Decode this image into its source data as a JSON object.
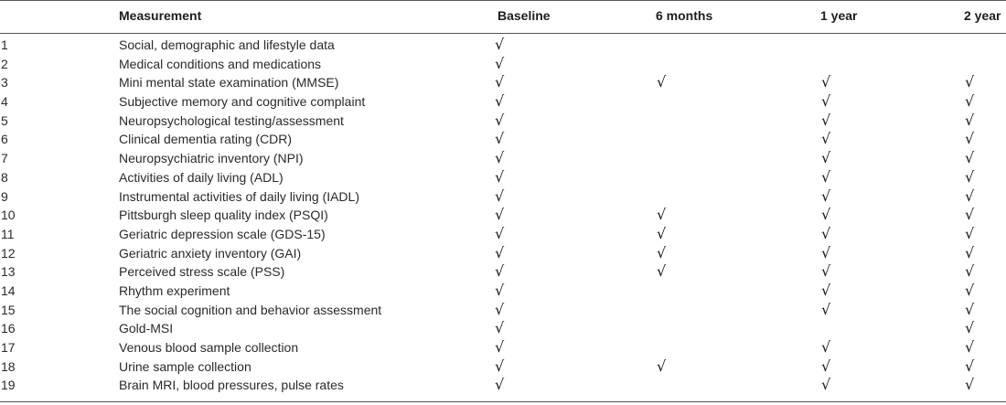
{
  "header": {
    "measurement": "Measurement",
    "baseline": "Baseline",
    "six_months": "6 months",
    "one_year": "1 year",
    "two_year": "2 year"
  },
  "check_symbol": "√",
  "rows": [
    {
      "num": "1",
      "measurement": "Social, demographic and lifestyle data",
      "baseline": true,
      "six_months": false,
      "one_year": false,
      "two_year": false
    },
    {
      "num": "2",
      "measurement": "Medical conditions and medications",
      "baseline": true,
      "six_months": false,
      "one_year": false,
      "two_year": false
    },
    {
      "num": "3",
      "measurement": "Mini mental state examination (MMSE)",
      "baseline": true,
      "six_months": true,
      "one_year": true,
      "two_year": true
    },
    {
      "num": "4",
      "measurement": "Subjective memory and cognitive complaint",
      "baseline": true,
      "six_months": false,
      "one_year": true,
      "two_year": true
    },
    {
      "num": "5",
      "measurement": "Neuropsychological testing/assessment",
      "baseline": true,
      "six_months": false,
      "one_year": true,
      "two_year": true
    },
    {
      "num": "6",
      "measurement": "Clinical dementia rating (CDR)",
      "baseline": true,
      "six_months": false,
      "one_year": true,
      "two_year": true
    },
    {
      "num": "7",
      "measurement": "Neuropsychiatric inventory (NPI)",
      "baseline": true,
      "six_months": false,
      "one_year": true,
      "two_year": true
    },
    {
      "num": "8",
      "measurement": "Activities of daily living (ADL)",
      "baseline": true,
      "six_months": false,
      "one_year": true,
      "two_year": true
    },
    {
      "num": "9",
      "measurement": "Instrumental activities of daily living (IADL)",
      "baseline": true,
      "six_months": false,
      "one_year": true,
      "two_year": true
    },
    {
      "num": "10",
      "measurement": "Pittsburgh sleep quality index (PSQI)",
      "baseline": true,
      "six_months": true,
      "one_year": true,
      "two_year": true
    },
    {
      "num": "11",
      "measurement": "Geriatric depression scale (GDS-15)",
      "baseline": true,
      "six_months": true,
      "one_year": true,
      "two_year": true
    },
    {
      "num": "12",
      "measurement": "Geriatric anxiety inventory (GAI)",
      "baseline": true,
      "six_months": true,
      "one_year": true,
      "two_year": true
    },
    {
      "num": "13",
      "measurement": "Perceived stress scale (PSS)",
      "baseline": true,
      "six_months": true,
      "one_year": true,
      "two_year": true
    },
    {
      "num": "14",
      "measurement": "Rhythm experiment",
      "baseline": true,
      "six_months": false,
      "one_year": true,
      "two_year": true
    },
    {
      "num": "15",
      "measurement": "The social cognition and behavior assessment",
      "baseline": true,
      "six_months": false,
      "one_year": true,
      "two_year": true
    },
    {
      "num": "16",
      "measurement": "Gold-MSI",
      "baseline": true,
      "six_months": false,
      "one_year": false,
      "two_year": true
    },
    {
      "num": "17",
      "measurement": "Venous blood sample collection",
      "baseline": true,
      "six_months": false,
      "one_year": true,
      "two_year": true
    },
    {
      "num": "18",
      "measurement": "Urine sample collection",
      "baseline": true,
      "six_months": true,
      "one_year": true,
      "two_year": true
    },
    {
      "num": "19",
      "measurement": "Brain MRI, blood pressures, pulse rates",
      "baseline": true,
      "six_months": false,
      "one_year": true,
      "two_year": true
    }
  ]
}
